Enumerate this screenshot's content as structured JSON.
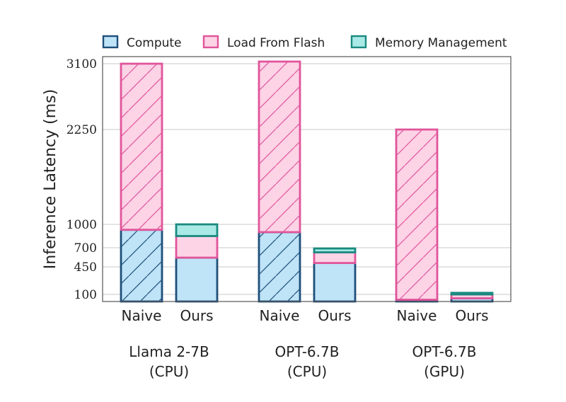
{
  "chart_data": {
    "type": "bar",
    "stacked": true,
    "ylabel": "Inference Latency (ms)",
    "yticks": [
      100,
      450,
      700,
      1000,
      2250,
      3100
    ],
    "ylim": [
      0,
      3150
    ],
    "grid": true,
    "legend_position": "top",
    "series": [
      {
        "name": "Compute",
        "color": "#1e4f7a",
        "fill": "#bfe3f7"
      },
      {
        "name": "Load From Flash",
        "color": "#e0559a",
        "fill": "#fdd3e6"
      },
      {
        "name": "Memory Management",
        "color": "#1a8a80",
        "fill": "#a9e9e6"
      }
    ],
    "groups": [
      {
        "label_line1": "Llama 2-7B",
        "label_line2": "(CPU)",
        "bars": [
          {
            "label": "Naive",
            "hatched": true,
            "values": {
              "Compute": 930,
              "Load From Flash": 2170,
              "Memory Management": 0
            }
          },
          {
            "label": "Ours",
            "hatched": false,
            "values": {
              "Compute": 570,
              "Load From Flash": 280,
              "Memory Management": 150
            }
          }
        ]
      },
      {
        "label_line1": "OPT-6.7B",
        "label_line2": "(CPU)",
        "bars": [
          {
            "label": "Naive",
            "hatched": true,
            "values": {
              "Compute": 900,
              "Load From Flash": 2230,
              "Memory Management": 0
            }
          },
          {
            "label": "Ours",
            "hatched": false,
            "values": {
              "Compute": 500,
              "Load From Flash": 140,
              "Memory Management": 50
            }
          }
        ]
      },
      {
        "label_line1": "OPT-6.7B",
        "label_line2": "(GPU)",
        "bars": [
          {
            "label": "Naive",
            "hatched": true,
            "values": {
              "Compute": 25,
              "Load From Flash": 2225,
              "Memory Management": 0
            }
          },
          {
            "label": "Ours",
            "hatched": false,
            "values": {
              "Compute": 45,
              "Load From Flash": 55,
              "Memory Management": 20
            }
          }
        ]
      }
    ]
  }
}
